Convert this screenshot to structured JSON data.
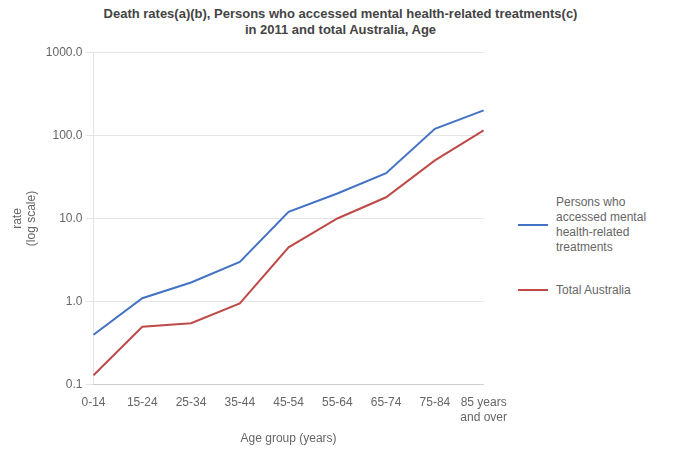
{
  "chart_data": {
    "type": "line",
    "title": "Death rates(a)(b), Persons who accessed  mental health-related treatments(c)\nin 2011 and total Australia, Age",
    "x_label": "Age group (years)",
    "y_label": "rate\n(log scale)",
    "categories": [
      "0-14",
      "15-24",
      "25-34",
      "35-44",
      "45-54",
      "55-64",
      "65-74",
      "75-84",
      "85 years\nand over"
    ],
    "series": [
      {
        "name": "Persons who\naccessed mental\nhealth-related\ntreatments",
        "color": "#4472C4",
        "values": [
          0.4,
          1.1,
          1.7,
          3.0,
          12.0,
          20.0,
          35.0,
          120.0,
          200.0
        ]
      },
      {
        "name": "Total Australia",
        "color": "#BE4B48",
        "values": [
          0.13,
          0.5,
          0.55,
          0.95,
          4.5,
          10.0,
          18.0,
          50.0,
          115.0
        ]
      }
    ],
    "log": "y",
    "ylim": [
      0.1,
      1000
    ],
    "yticks": [
      0.1,
      {
        "value": 1,
        "label": "1.0"
      },
      {
        "value": 10,
        "label": "10.0"
      },
      {
        "value": 100,
        "label": "100.0"
      },
      {
        "value": 1000,
        "label": "1000.0"
      }
    ],
    "grid": true,
    "legend": "right"
  }
}
